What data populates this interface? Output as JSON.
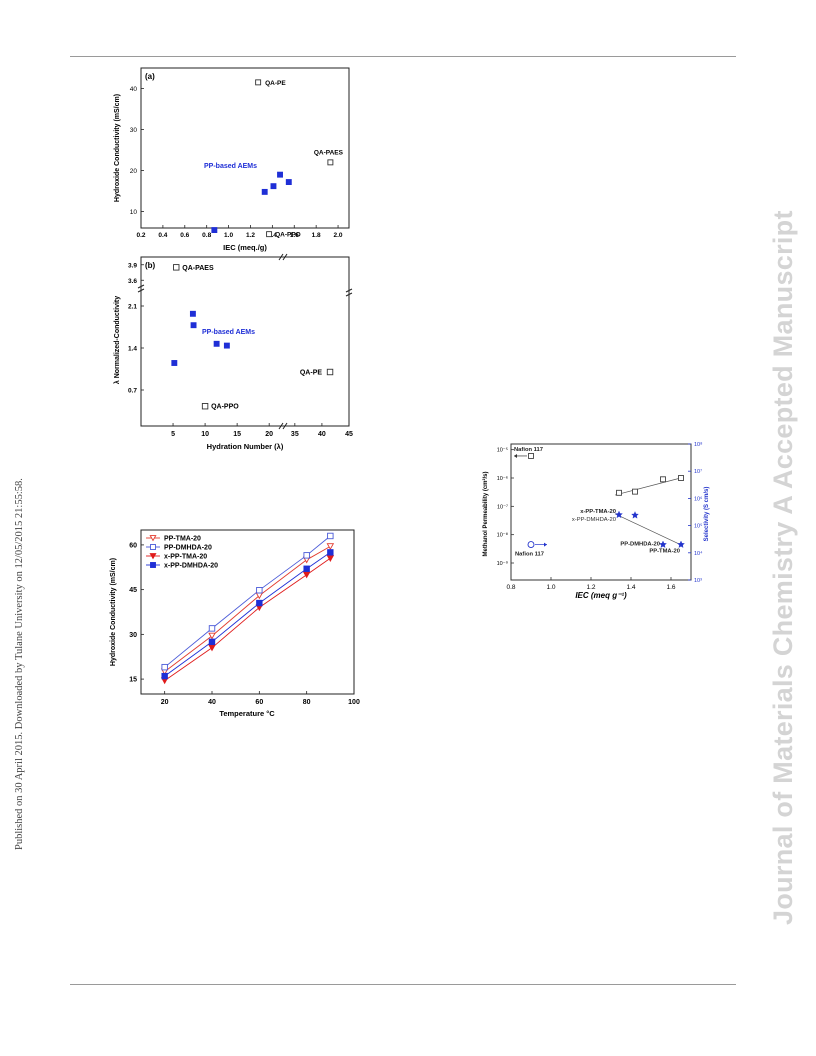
{
  "sidebar_left": "Published on 30 April 2015. Downloaded by Tulane University on 12/05/2015 21:55:58.",
  "sidebar_right": "Journal of Materials Chemistry A Accepted Manuscript",
  "chart_data": [
    {
      "type": "scatter",
      "panel_label": "(a)",
      "ylabel": "Hydroxide Conductivity (mS/cm)",
      "xlabel": "IEC (meq./g)",
      "xlim": [
        0.2,
        2.1
      ],
      "ylim": [
        6,
        45
      ],
      "xticks": [
        "0.2",
        "0.4",
        "0.6",
        "0.8",
        "1.0",
        "1.2",
        "1.4",
        "1.6",
        "1.8",
        "2.0"
      ],
      "yticks": [
        "10",
        "20",
        "30",
        "40"
      ],
      "series": [
        {
          "name": "PP-based AEMs",
          "marker": "filled-square",
          "color": "#1f2fd6",
          "x": [
            0.87,
            1.33,
            1.41,
            1.47,
            1.55
          ],
          "y": [
            5.5,
            14.8,
            16.2,
            19.0,
            17.2
          ]
        },
        {
          "marker": "open-square",
          "color": "#333333",
          "x": [
            1.27,
            1.37,
            1.93
          ],
          "y": [
            41.5,
            4.5,
            22.0
          ],
          "labels": [
            "QA-PE",
            "QA-PPO",
            "QA-PAES"
          ]
        }
      ],
      "annotation": "PP-based AEMs"
    },
    {
      "type": "scatter",
      "panel_label": "(b)",
      "ylabel": "λ Normalized-Conductivity",
      "xlabel": "Hydration Number (λ)",
      "xticks": [
        "5",
        "10",
        "15",
        "20",
        "35",
        "40",
        "45"
      ],
      "yticks": [
        "0.7",
        "1.4",
        "2.1",
        "3.6",
        "3.9"
      ],
      "series": [
        {
          "name": "PP-based AEMs",
          "marker": "filled-square",
          "color": "#1f2fd6",
          "x": [
            5.2,
            8.1,
            8.2,
            11.8,
            13.4
          ],
          "y": [
            1.15,
            1.97,
            1.78,
            1.47,
            1.44
          ]
        },
        {
          "marker": "open-square",
          "color": "#333333",
          "x": [
            5.5,
            10.0,
            41.5
          ],
          "y": [
            3.85,
            0.43,
            1.0
          ],
          "labels": [
            "QA-PAES",
            "QA-PPO",
            "QA-PE"
          ]
        }
      ],
      "annotation": "PP-based AEMs"
    },
    {
      "type": "line",
      "ylabel": "Hydroxide Conductivity (mS/cm)",
      "xlabel": "Temperature °C",
      "xlim": [
        10,
        100
      ],
      "ylim": [
        10,
        65
      ],
      "xticks": [
        "20",
        "40",
        "60",
        "80",
        "100"
      ],
      "yticks": [
        "15",
        "30",
        "45",
        "60"
      ],
      "x": [
        20,
        40,
        60,
        80,
        90
      ],
      "series": [
        {
          "name": "PP-TMA-20",
          "marker": "open-triangle-down",
          "color": "#e23b2e",
          "values": [
            17.5,
            29.5,
            43.0,
            55.0,
            59.5
          ]
        },
        {
          "name": "PP-DMHDA-20",
          "marker": "open-square",
          "color": "#4a5ad8",
          "values": [
            19.0,
            32.0,
            44.8,
            56.5,
            63.0
          ]
        },
        {
          "name": "x-PP-TMA-20",
          "marker": "filled-triangle-down",
          "color": "#e01b1b",
          "values": [
            14.5,
            25.5,
            39.0,
            50.0,
            55.5
          ]
        },
        {
          "name": "x-PP-DMHDA-20",
          "marker": "filled-square",
          "color": "#1f2fd6",
          "values": [
            16.0,
            27.5,
            40.5,
            52.0,
            57.5
          ]
        }
      ]
    },
    {
      "type": "scatter",
      "ylabel": "Methanol Permeability (cm²/s)",
      "y2label": "Selectivity (S cm/s)",
      "xlabel": "IEC (meq g⁻¹)",
      "xlim": [
        0.8,
        1.7
      ],
      "xticks": [
        "0.8",
        "1.0",
        "1.2",
        "1.4",
        "1.6"
      ],
      "yticks": [
        "10⁻⁹",
        "10⁻⁸",
        "10⁻⁷",
        "10⁻⁶",
        "10⁻⁵"
      ],
      "y2ticks": [
        "10³",
        "10⁴",
        "10⁵",
        "10⁶",
        "10⁷",
        "10⁸"
      ],
      "series": [
        {
          "name": "Methanol Permeability",
          "marker": "open-square",
          "color": "#444444",
          "x": [
            1.34,
            1.42,
            1.56,
            1.65
          ],
          "y": [
            3e-07,
            3.3e-07,
            9e-07,
            1e-06
          ]
        },
        {
          "name": "Selectivity",
          "marker": "star",
          "color": "#2233cc",
          "x": [
            1.34,
            1.42,
            1.56,
            1.65
          ],
          "y": [
            250000,
            240000,
            20000,
            20000
          ]
        },
        {
          "name": "Nafion 117",
          "marker": "open-square",
          "color": "#444444",
          "x": [
            0.9
          ],
          "y": [
            6e-06
          ]
        },
        {
          "name": "Nafion 117",
          "marker": "open-circle",
          "color": "#2233cc",
          "x": [
            0.9
          ],
          "y": [
            20000
          ]
        }
      ],
      "labels": [
        "Nafion 117",
        "x-PP-TMA-20",
        "x-PP-DMHDA-20",
        "PP-DMHDA-20",
        "PP-TMA-20",
        "Nafion 117"
      ]
    }
  ]
}
